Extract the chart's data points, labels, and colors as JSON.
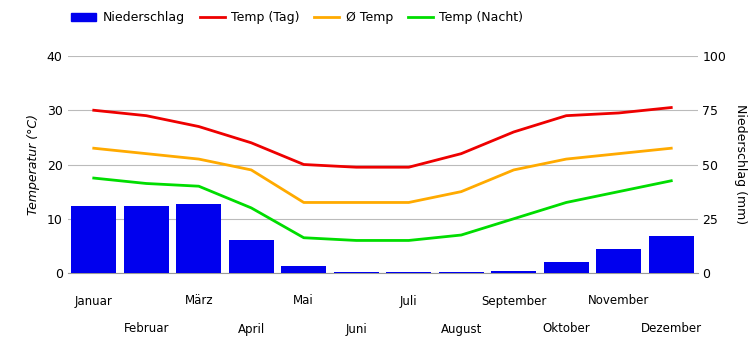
{
  "months": [
    "Januar",
    "Februar",
    "März",
    "April",
    "Mai",
    "Juni",
    "Juli",
    "August",
    "September",
    "Oktober",
    "November",
    "Dezember"
  ],
  "precipitation_mm": [
    31,
    31,
    32,
    15,
    3,
    0.5,
    0.5,
    0.5,
    1,
    5,
    11,
    17
  ],
  "temp_day": [
    30,
    29,
    27,
    24,
    20,
    19.5,
    19.5,
    22,
    26,
    29,
    29.5,
    30.5
  ],
  "temp_avg": [
    23,
    22,
    21,
    19,
    13,
    13,
    13,
    15,
    19,
    21,
    22,
    23
  ],
  "temp_night": [
    17.5,
    16.5,
    16,
    12,
    6.5,
    6,
    6,
    7,
    10,
    13,
    15,
    17
  ],
  "bar_color": "#0000ee",
  "line_color_day": "#ee0000",
  "line_color_avg": "#ffaa00",
  "line_color_night": "#00dd00",
  "ylabel_left": "Temperatur (°C)",
  "ylabel_right": "Niederschlag (mm)",
  "ylim_left": [
    0,
    40
  ],
  "ylim_right": [
    0,
    100
  ],
  "yticks_left": [
    0,
    10,
    20,
    30,
    40
  ],
  "yticks_right": [
    0,
    25,
    50,
    75,
    100
  ],
  "legend_labels": [
    "Niederschlag",
    "Temp (Tag)",
    "Ø Temp",
    "Temp (Nacht)"
  ],
  "background_color": "#ffffff",
  "grid_color": "#bbbbbb"
}
